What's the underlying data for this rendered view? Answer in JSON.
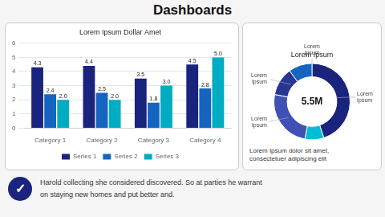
{
  "title": "Dashboards",
  "annotations": [
    "✓",
    "Harold collecting she considered discovered. So at parties he warrant",
    "on staying new homes and put better and."
  ],
  "chart_data": [
    {
      "type": "bar",
      "title": "Lorem Ipsum Dollar Amet",
      "categories": [
        "Category 1",
        "Category 2",
        "Category 3",
        "Category 4"
      ],
      "series": [
        {
          "name": "Series 1",
          "color": "#1a237e",
          "values": [
            4.3,
            4.4,
            3.5,
            4.5
          ]
        },
        {
          "name": "Series 2",
          "color": "#1565c0",
          "values": [
            2.4,
            2.5,
            1.8,
            2.8
          ]
        },
        {
          "name": "Series 3",
          "color": "#00acc1",
          "values": [
            2.0,
            2.0,
            3.0,
            5.0
          ],
          "value_labels": [
            "2.0",
            "2.0",
            "3.0",
            "5.0"
          ]
        }
      ],
      "ylim": [
        0,
        6
      ],
      "yticks": [
        0,
        1,
        2,
        3,
        4,
        5,
        6
      ],
      "grid": true,
      "legend": "bottom",
      "data_labels": true
    },
    {
      "type": "doughnut",
      "title": "Lorem Ipsum",
      "values": [
        45,
        8,
        25,
        12,
        10
      ],
      "colors": [
        "#1a237e",
        "#00bcd4",
        "#3f51b5",
        "#283593",
        "#1565c0"
      ],
      "annotations": [
        "5.5M",
        "Lorem\nIpsum",
        "Lorem\nIpsum",
        "Lorem\nIpsum",
        "Lorem\nIpsum",
        "Lorem Ipsum dolor sit amet,\nconsectetuer adipiscing elit"
      ]
    }
  ]
}
